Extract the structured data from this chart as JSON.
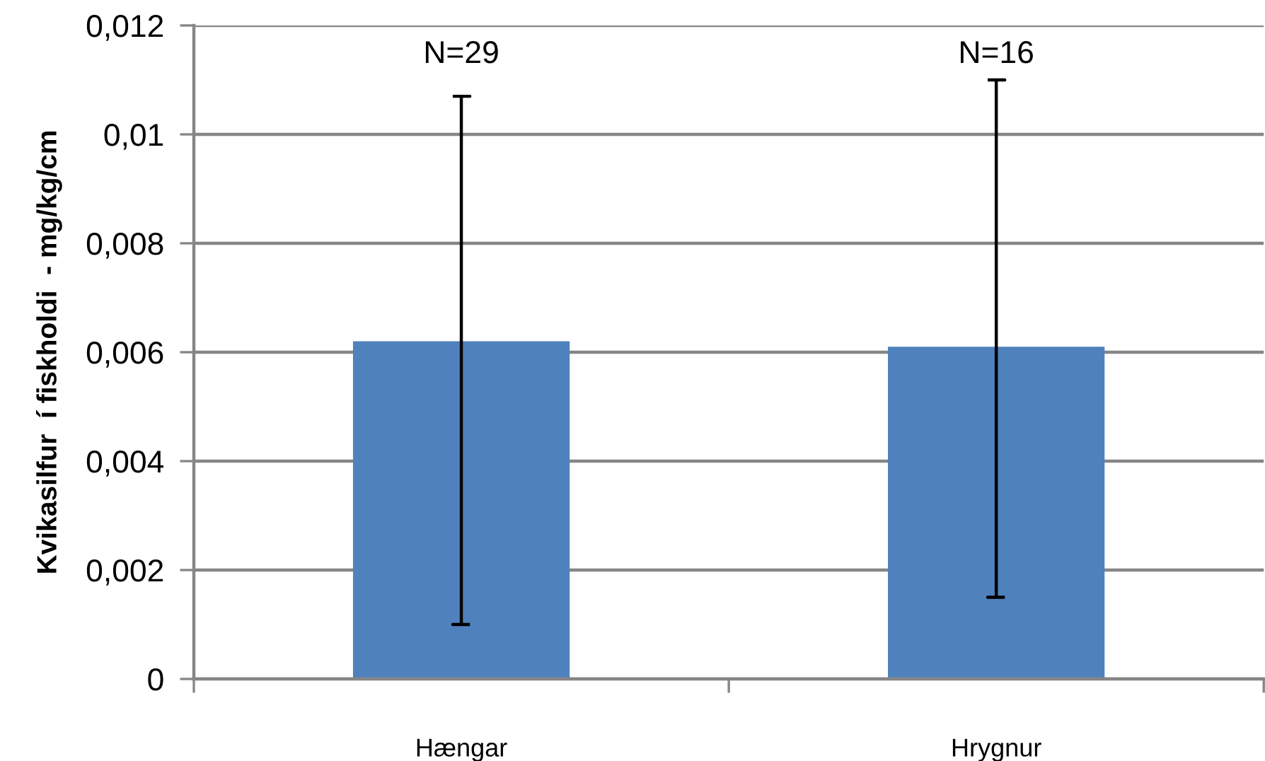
{
  "chart_data": {
    "type": "bar",
    "ylabel": "Kvikasilfur  í fiskholdi  - mg/kg/cm",
    "categories": [
      "Hængar",
      "Hrygnur"
    ],
    "values": [
      0.0062,
      0.0061
    ],
    "errors": [
      [
        0.001,
        0.0107
      ],
      [
        0.0015,
        0.011
      ]
    ],
    "color": "#4f81bd",
    "ylim": [
      0,
      0.012
    ],
    "yticks": [
      0,
      {
        "value": 0.002,
        "label": "0,002"
      },
      {
        "value": 0.004,
        "label": "0,004"
      },
      {
        "value": 0.006,
        "label": "0,006"
      },
      {
        "value": 0.008,
        "label": "0,008"
      },
      {
        "value": 0.01,
        "label": "0,01"
      },
      {
        "value": 0.012,
        "label": "0,012"
      }
    ],
    "grid": "y",
    "annotations": [
      "N=29",
      "N=16"
    ]
  }
}
